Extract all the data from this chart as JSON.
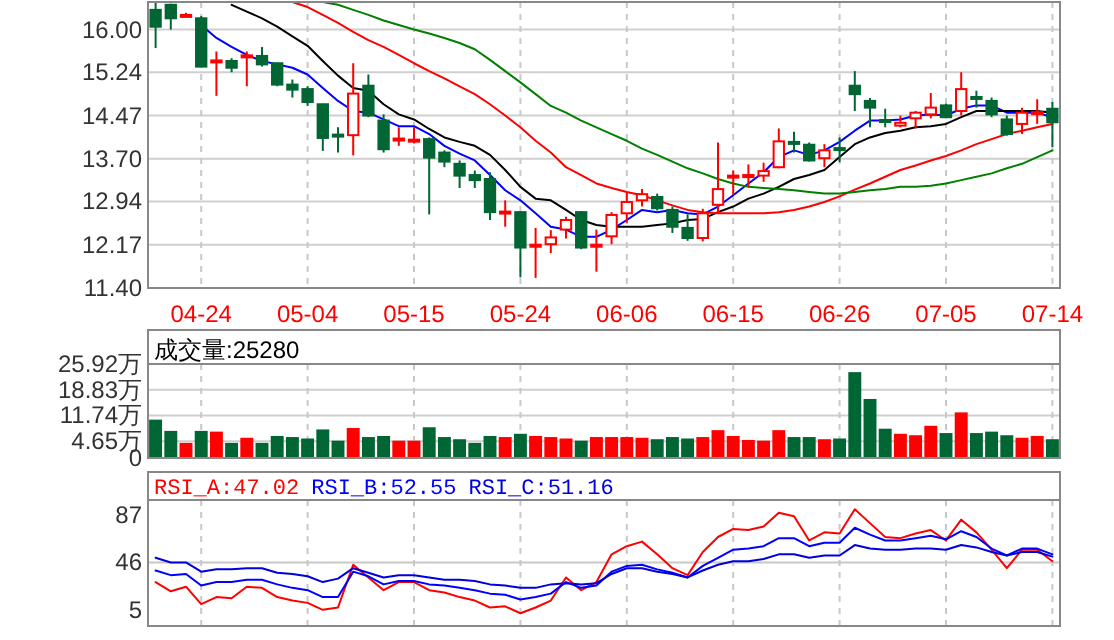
{
  "chart_data": [
    {
      "type": "candlestick",
      "categories": [
        null,
        null,
        null,
        "04-24",
        null,
        null,
        null,
        null,
        null,
        null,
        "05-04",
        null,
        null,
        null,
        null,
        null,
        null,
        "05-15",
        null,
        null,
        null,
        null,
        null,
        null,
        "05-24",
        null,
        null,
        null,
        null,
        null,
        null,
        "06-06",
        null,
        null,
        null,
        null,
        null,
        null,
        "06-15",
        null,
        null,
        null,
        null,
        null,
        null,
        "06-26",
        null,
        null,
        null,
        null,
        null,
        null,
        "07-05",
        null,
        null,
        null,
        null,
        null,
        null,
        "07-14"
      ],
      "ohlc": [
        [
          16.35,
          16.48,
          15.67,
          16.05
        ],
        [
          16.44,
          16.46,
          16.0,
          16.2
        ],
        [
          16.24,
          16.3,
          16.22,
          16.26
        ],
        [
          16.2,
          16.24,
          15.34,
          15.34
        ],
        [
          15.43,
          15.61,
          14.82,
          15.45
        ],
        [
          15.44,
          15.49,
          15.24,
          15.32
        ],
        [
          15.52,
          15.61,
          14.99,
          15.54
        ],
        [
          15.53,
          15.69,
          15.34,
          15.38
        ],
        [
          15.4,
          15.41,
          14.99,
          15.02
        ],
        [
          15.02,
          15.11,
          14.79,
          14.93
        ],
        [
          14.94,
          14.99,
          14.64,
          14.71
        ],
        [
          14.67,
          14.68,
          13.84,
          14.07
        ],
        [
          14.13,
          14.26,
          13.81,
          14.12
        ],
        [
          14.12,
          15.4,
          13.76,
          14.86
        ],
        [
          15.0,
          15.2,
          14.44,
          14.47
        ],
        [
          14.38,
          14.49,
          13.81,
          13.87
        ],
        [
          14.04,
          14.26,
          13.93,
          14.06
        ],
        [
          14.03,
          14.26,
          13.97,
          14.04
        ],
        [
          14.05,
          14.08,
          12.71,
          13.72
        ],
        [
          13.81,
          13.85,
          13.55,
          13.65
        ],
        [
          13.61,
          13.67,
          13.18,
          13.4
        ],
        [
          13.41,
          13.49,
          13.18,
          13.32
        ],
        [
          13.34,
          13.46,
          12.61,
          12.75
        ],
        [
          12.74,
          12.96,
          12.49,
          12.76
        ],
        [
          12.75,
          12.76,
          11.59,
          12.12
        ],
        [
          12.15,
          12.47,
          11.58,
          12.17
        ],
        [
          12.18,
          12.43,
          12.02,
          12.3
        ],
        [
          12.44,
          12.67,
          12.28,
          12.61
        ],
        [
          12.75,
          12.77,
          12.09,
          12.12
        ],
        [
          12.15,
          12.44,
          11.69,
          12.17
        ],
        [
          12.32,
          12.75,
          12.18,
          12.7
        ],
        [
          12.73,
          13.1,
          12.56,
          12.93
        ],
        [
          12.96,
          13.16,
          12.85,
          13.07
        ],
        [
          13.02,
          13.08,
          12.78,
          12.82
        ],
        [
          12.79,
          12.85,
          12.38,
          12.49
        ],
        [
          12.47,
          12.71,
          12.24,
          12.29
        ],
        [
          12.29,
          12.81,
          12.23,
          12.73
        ],
        [
          12.88,
          13.99,
          12.73,
          13.16
        ],
        [
          13.39,
          13.49,
          13.06,
          13.4
        ],
        [
          13.4,
          13.6,
          13.2,
          13.41
        ],
        [
          13.4,
          13.63,
          13.29,
          13.48
        ],
        [
          13.55,
          14.24,
          13.53,
          14.01
        ],
        [
          14.0,
          14.18,
          13.81,
          13.99
        ],
        [
          13.95,
          13.99,
          13.65,
          13.67
        ],
        [
          13.71,
          13.96,
          13.55,
          13.85
        ],
        [
          13.89,
          14.08,
          13.64,
          13.88
        ],
        [
          15.0,
          15.26,
          14.55,
          14.85
        ],
        [
          14.73,
          14.78,
          14.26,
          14.61
        ],
        [
          14.39,
          14.59,
          14.26,
          14.38
        ],
        [
          14.29,
          14.47,
          14.26,
          14.34
        ],
        [
          14.42,
          14.55,
          14.24,
          14.52
        ],
        [
          14.49,
          14.87,
          14.42,
          14.61
        ],
        [
          14.65,
          14.68,
          14.42,
          14.44
        ],
        [
          14.55,
          15.24,
          14.47,
          14.94
        ],
        [
          14.8,
          14.91,
          14.61,
          14.79
        ],
        [
          14.73,
          14.79,
          14.44,
          14.49
        ],
        [
          14.4,
          14.47,
          14.11,
          14.14
        ],
        [
          14.32,
          14.61,
          14.14,
          14.52
        ],
        [
          14.51,
          14.76,
          14.32,
          14.53
        ],
        [
          14.59,
          14.71,
          13.91,
          14.35
        ]
      ],
      "colors": [
        "#006633",
        "#006633",
        "#ff0000",
        "#006633",
        "#ff0000",
        "#006633",
        "#ff0000",
        "#006633",
        "#006633",
        "#006633",
        "#006633",
        "#006633",
        "#006633",
        "#ff0000",
        "#006633",
        "#006633",
        "#ff0000",
        "#ff0000",
        "#006633",
        "#006633",
        "#006633",
        "#006633",
        "#006633",
        "#ff0000",
        "#006633",
        "#ff0000",
        "#ff0000",
        "#ff0000",
        "#006633",
        "#ff0000",
        "#ff0000",
        "#ff0000",
        "#ff0000",
        "#006633",
        "#006633",
        "#006633",
        "#ff0000",
        "#ff0000",
        "#ff0000",
        "#ff0000",
        "#ff0000",
        "#ff0000",
        "#006633",
        "#006633",
        "#ff0000",
        "#006633",
        "#006633",
        "#006633",
        "#006633",
        "#ff0000",
        "#ff0000",
        "#ff0000",
        "#006633",
        "#ff0000",
        "#006633",
        "#006633",
        "#006633",
        "#ff0000",
        "#ff0000",
        "#006633"
      ],
      "series": [
        {
          "type": "line",
          "color": "#0000ff",
          "values": [
            null,
            null,
            null,
            16.08,
            15.85,
            15.69,
            15.55,
            15.44,
            15.38,
            15.32,
            15.2,
            14.96,
            14.73,
            14.55,
            14.52,
            14.4,
            14.28,
            14.28,
            14.14,
            13.93,
            13.79,
            13.67,
            13.41,
            13.14,
            12.96,
            12.73,
            12.49,
            12.44,
            12.31,
            12.31,
            12.44,
            12.61,
            12.79,
            12.75,
            12.79,
            12.73,
            12.71,
            12.85,
            13.05,
            13.26,
            13.46,
            13.73,
            13.85,
            13.77,
            13.85,
            14.0,
            14.2,
            14.38,
            14.38,
            14.4,
            14.47,
            14.49,
            14.47,
            14.59,
            14.65,
            14.65,
            14.52,
            14.52,
            14.52,
            14.44
          ]
        },
        {
          "type": "line",
          "color": "#000000",
          "values": [
            null,
            null,
            null,
            null,
            null,
            16.44,
            16.32,
            16.2,
            16.05,
            15.88,
            15.71,
            15.44,
            15.18,
            14.96,
            14.91,
            14.67,
            14.49,
            14.4,
            14.23,
            14.08,
            14.0,
            13.93,
            13.77,
            13.5,
            13.2,
            12.99,
            12.96,
            12.79,
            12.61,
            12.52,
            12.49,
            12.49,
            12.49,
            12.52,
            12.55,
            12.61,
            12.63,
            12.75,
            12.85,
            12.99,
            13.08,
            13.2,
            13.34,
            13.41,
            13.5,
            13.73,
            13.96,
            14.08,
            14.16,
            14.2,
            14.26,
            14.28,
            14.32,
            14.44,
            14.55,
            14.55,
            14.55,
            14.55,
            14.55,
            14.52
          ]
        },
        {
          "type": "line",
          "color": "#ff0000",
          "values": [
            null,
            null,
            null,
            null,
            null,
            null,
            null,
            null,
            null,
            16.49,
            16.4,
            16.26,
            16.12,
            15.96,
            15.81,
            15.69,
            15.55,
            15.4,
            15.26,
            15.13,
            14.99,
            14.85,
            14.67,
            14.47,
            14.26,
            14.02,
            13.81,
            13.55,
            13.41,
            13.26,
            13.18,
            13.11,
            13.05,
            12.96,
            12.87,
            12.79,
            12.75,
            12.73,
            12.73,
            12.73,
            12.73,
            12.75,
            12.79,
            12.85,
            12.93,
            13.03,
            13.15,
            13.26,
            13.38,
            13.5,
            13.58,
            13.67,
            13.75,
            13.85,
            13.96,
            14.05,
            14.14,
            14.2,
            14.26,
            14.32
          ]
        },
        {
          "type": "line",
          "color": "#008000",
          "values": [
            null,
            null,
            null,
            null,
            null,
            null,
            null,
            null,
            null,
            null,
            null,
            16.49,
            16.44,
            16.35,
            16.26,
            16.16,
            16.08,
            16.0,
            15.93,
            15.85,
            15.76,
            15.65,
            15.46,
            15.26,
            15.06,
            14.85,
            14.64,
            14.52,
            14.38,
            14.26,
            14.14,
            14.02,
            13.88,
            13.77,
            13.65,
            13.53,
            13.44,
            13.34,
            13.26,
            13.2,
            13.18,
            13.16,
            13.14,
            13.11,
            13.08,
            13.08,
            13.11,
            13.14,
            13.16,
            13.2,
            13.2,
            13.22,
            13.26,
            13.32,
            13.38,
            13.44,
            13.53,
            13.61,
            13.73,
            13.85
          ]
        }
      ],
      "ylim": [
        11.4,
        16.49
      ],
      "yticks": [
        {
          "value": 11.4,
          "label": "11.40"
        },
        {
          "value": 12.17,
          "label": "12.17"
        },
        {
          "value": 12.94,
          "label": "12.94"
        },
        {
          "value": 13.7,
          "label": "13.70"
        },
        {
          "value": 14.47,
          "label": "14.47"
        },
        {
          "value": 15.24,
          "label": "15.24"
        },
        {
          "value": 16.0,
          "label": "16.00"
        }
      ],
      "grid": true
    },
    {
      "type": "bar",
      "categories": [
        null,
        null,
        null,
        null,
        null,
        null,
        null,
        null,
        null,
        null,
        null,
        null,
        null,
        null,
        null,
        null,
        null,
        null,
        null,
        null,
        null,
        null,
        null,
        null,
        null,
        null,
        null,
        null,
        null,
        null,
        null,
        null,
        null,
        null,
        null,
        null,
        null,
        null,
        null,
        null,
        null,
        null,
        null,
        null,
        null,
        null,
        null,
        null,
        null,
        null,
        null,
        null,
        null,
        null,
        null,
        null,
        null,
        null,
        null,
        null
      ],
      "values": [
        10.3,
        7.2,
        3.9,
        7.2,
        7.0,
        3.9,
        5.3,
        3.9,
        5.8,
        5.5,
        5.1,
        7.6,
        4.5,
        8.0,
        5.5,
        5.8,
        4.5,
        4.5,
        8.2,
        5.5,
        4.9,
        3.9,
        5.8,
        5.5,
        6.4,
        5.8,
        5.5,
        5.1,
        4.5,
        5.5,
        5.5,
        5.5,
        5.3,
        4.9,
        5.5,
        5.1,
        5.5,
        7.4,
        5.8,
        4.7,
        4.5,
        7.4,
        5.5,
        5.5,
        4.9,
        5.1,
        23.4,
        16.0,
        7.8,
        6.4,
        6.0,
        8.6,
        6.6,
        12.3,
        6.6,
        7.0,
        6.0,
        5.3,
        5.8,
        4.9
      ],
      "colors": [
        "#006633",
        "#006633",
        "#ff0000",
        "#006633",
        "#ff0000",
        "#006633",
        "#ff0000",
        "#006633",
        "#006633",
        "#006633",
        "#006633",
        "#006633",
        "#006633",
        "#ff0000",
        "#006633",
        "#006633",
        "#ff0000",
        "#ff0000",
        "#006633",
        "#006633",
        "#006633",
        "#006633",
        "#006633",
        "#ff0000",
        "#006633",
        "#ff0000",
        "#ff0000",
        "#ff0000",
        "#006633",
        "#ff0000",
        "#ff0000",
        "#ff0000",
        "#ff0000",
        "#006633",
        "#006633",
        "#006633",
        "#ff0000",
        "#ff0000",
        "#ff0000",
        "#ff0000",
        "#ff0000",
        "#ff0000",
        "#006633",
        "#006633",
        "#ff0000",
        "#006633",
        "#006633",
        "#006633",
        "#006633",
        "#ff0000",
        "#ff0000",
        "#ff0000",
        "#006633",
        "#ff0000",
        "#006633",
        "#006633",
        "#006633",
        "#ff0000",
        "#ff0000",
        "#006633"
      ],
      "ylim": [
        0,
        25.92
      ],
      "yticks": [
        0,
        {
          "value": 4.65,
          "label": "4.65万"
        },
        {
          "value": 11.74,
          "label": "11.74万"
        },
        {
          "value": 18.83,
          "label": "18.83万"
        },
        {
          "value": 25.92,
          "label": "25.92万"
        }
      ],
      "grid": true,
      "tick_labels": "y",
      "annotations": [
        "成交量:25280"
      ]
    },
    {
      "type": "line",
      "categories": [
        null,
        null,
        null,
        null,
        null,
        null,
        null,
        null,
        null,
        null,
        null,
        null,
        null,
        null,
        null,
        null,
        null,
        null,
        null,
        null,
        null,
        null,
        null,
        null,
        null,
        null,
        null,
        null,
        null,
        null,
        null,
        null,
        null,
        null,
        null,
        null,
        null,
        null,
        null,
        null,
        null,
        null,
        null,
        null,
        null,
        null,
        null,
        null,
        null,
        null,
        null,
        null,
        null,
        null,
        null,
        null,
        null,
        null,
        null,
        null
      ],
      "series": [
        {
          "name": "RSI_A:47.02",
          "color": "#ff0000",
          "values": [
            29,
            21,
            25,
            10,
            16,
            15,
            25,
            24,
            16,
            13,
            11,
            5,
            7,
            44,
            33,
            22,
            29,
            29,
            22,
            20,
            16,
            13,
            7,
            8,
            2,
            7,
            13,
            33,
            22,
            29,
            53,
            60,
            64,
            53,
            41,
            35,
            55,
            68,
            75,
            74,
            77,
            89,
            86,
            65,
            72,
            71,
            92,
            80,
            68,
            67,
            71,
            74,
            65,
            83,
            72,
            57,
            41,
            57,
            57,
            47
          ]
        },
        {
          "name": "RSI_B:52.55",
          "color": "#0000ff",
          "values": [
            39,
            35,
            36,
            26,
            29,
            29,
            31,
            31,
            27,
            24,
            22,
            16,
            16,
            38,
            34,
            27,
            30,
            30,
            27,
            26,
            24,
            22,
            19,
            18,
            14,
            16,
            19,
            29,
            24,
            26,
            38,
            43,
            44,
            40,
            37,
            33,
            43,
            50,
            57,
            58,
            60,
            67,
            67,
            60,
            63,
            63,
            76,
            70,
            65,
            65,
            67,
            69,
            66,
            73,
            68,
            58,
            52,
            58,
            58,
            53
          ]
        },
        {
          "name": "RSI_C:51.16",
          "color": "#0000dd",
          "values": [
            50,
            46,
            46,
            38,
            40,
            40,
            41,
            41,
            37,
            36,
            34,
            29,
            32,
            41,
            37,
            33,
            35,
            35,
            33,
            31,
            31,
            30,
            27,
            26,
            24,
            24,
            27,
            28,
            27,
            28,
            36,
            41,
            41,
            38,
            36,
            33,
            39,
            44,
            47,
            47,
            49,
            53,
            53,
            50,
            52,
            52,
            61,
            58,
            57,
            57,
            58,
            58,
            57,
            61,
            59,
            55,
            52,
            55,
            55,
            51
          ]
        }
      ],
      "ylim": [
        -9,
        100
      ],
      "yticks": [
        5,
        46,
        87
      ],
      "grid": "x",
      "tick_labels": "y",
      "ref_lines": [
        {
          "axis": "y",
          "value": 46,
          "color": "#c8c8c8"
        }
      ]
    }
  ]
}
